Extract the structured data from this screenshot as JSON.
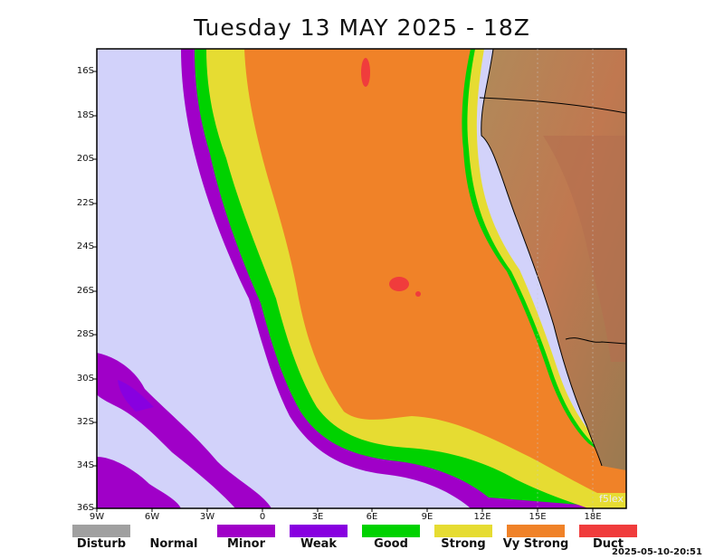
{
  "title": "Tuesday 13 MAY 2025 - 18Z",
  "timestamp": "2025-05-10-20:51",
  "watermark": "f5lex",
  "y_axis_labels": [
    "16S",
    "18S",
    "20S",
    "22S",
    "24S",
    "26S",
    "28S",
    "30S",
    "32S",
    "34S",
    "36S"
  ],
  "x_axis_labels": [
    "9W",
    "6W",
    "3W",
    "0",
    "3E",
    "6E",
    "9E",
    "12E",
    "15E",
    "18E"
  ],
  "legend": [
    {
      "label": "Disturb",
      "color": "#a0a0a0"
    },
    {
      "label": "Normal",
      "color": "#ffffff"
    },
    {
      "label": "Minor",
      "color": "#a000c8"
    },
    {
      "label": "Weak",
      "color": "#8800e0"
    },
    {
      "label": "Good",
      "color": "#00d200"
    },
    {
      "label": "Strong",
      "color": "#e6dc32"
    },
    {
      "label": "Vy Strong",
      "color": "#f08228"
    },
    {
      "label": "Duct",
      "color": "#f03c3c"
    }
  ],
  "colors": {
    "background": "#d2d2fa",
    "land": "#a57a52",
    "border": "#000000"
  }
}
